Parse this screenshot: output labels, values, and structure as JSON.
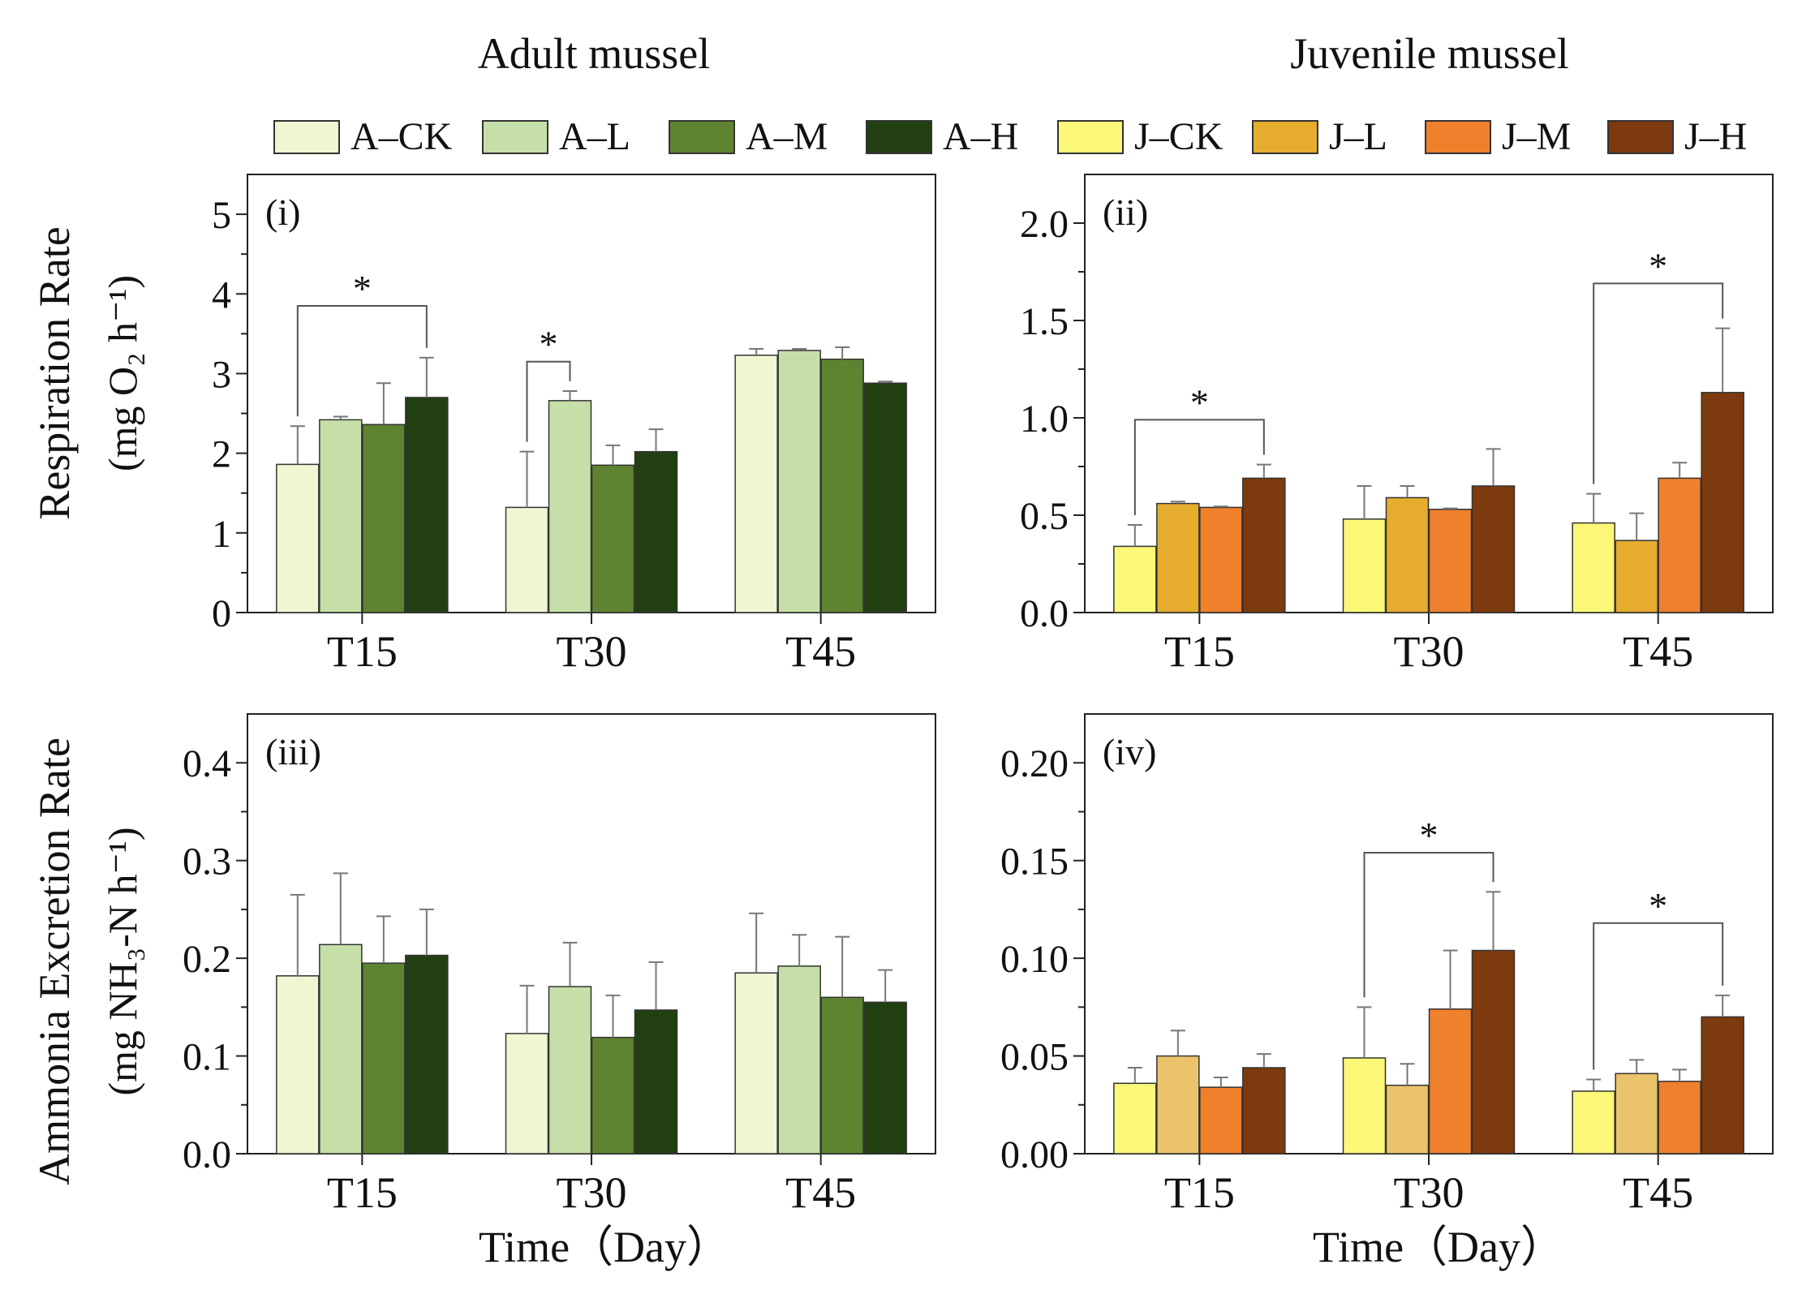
{
  "titles": {
    "adult": "Adult mussel",
    "juvenile": "Juvenile mussel"
  },
  "legend": [
    {
      "label": "A–CK",
      "color": "#f0f6d2"
    },
    {
      "label": "A–L",
      "color": "#c6dfa8"
    },
    {
      "label": "A–M",
      "color": "#5e8331"
    },
    {
      "label": "A–H",
      "color": "#223f12"
    },
    {
      "label": "J–CK",
      "color": "#fbf878"
    },
    {
      "label": "J–L",
      "color": "#e5ac2e"
    },
    {
      "label": "J–M",
      "color": "#ef802c"
    },
    {
      "label": "J–H",
      "color": "#7d3a0e"
    }
  ],
  "axis_labels": {
    "respiration": "Respiration Rate",
    "respiration_unit": "(mg O₂ h⁻¹)",
    "ammonia": "Ammonia Excretion Rate",
    "ammonia_unit": "(mg NH₃-N h⁻¹)",
    "time": "Time（Day）"
  },
  "chart_data": [
    {
      "type": "bar",
      "panel": "(i)",
      "title": "",
      "ylabel": "Respiration Rate (mg O2 h-1)",
      "xlabel": "",
      "categories": [
        "T15",
        "T30",
        "T45"
      ],
      "ylim": [
        0,
        5.5
      ],
      "yticks": [
        0,
        1,
        2,
        3,
        4,
        5
      ],
      "ytick_labels": [
        "0",
        "1",
        "2",
        "3",
        "4",
        "5"
      ],
      "series": [
        {
          "name": "A–CK",
          "color": "#f0f6d2",
          "values": [
            1.86,
            1.32,
            3.23
          ],
          "errors": [
            0.48,
            0.7,
            0.08
          ]
        },
        {
          "name": "A–L",
          "color": "#c6dfa8",
          "values": [
            2.42,
            2.66,
            3.29
          ],
          "errors": [
            0.04,
            0.12,
            0.02
          ]
        },
        {
          "name": "A–M",
          "color": "#5e8331",
          "values": [
            2.36,
            1.85,
            3.18
          ],
          "errors": [
            0.52,
            0.25,
            0.15
          ]
        },
        {
          "name": "A–H",
          "color": "#223f12",
          "values": [
            2.7,
            2.02,
            2.88
          ],
          "errors": [
            0.5,
            0.28,
            0.02
          ]
        }
      ],
      "significance": [
        {
          "group": 0,
          "from": 0,
          "to": 3,
          "y": 3.85,
          "label": "*"
        },
        {
          "group": 1,
          "from": 0,
          "to": 1,
          "y": 3.15,
          "label": "*"
        }
      ]
    },
    {
      "type": "bar",
      "panel": "(ii)",
      "title": "",
      "ylabel": "",
      "xlabel": "",
      "categories": [
        "T15",
        "T30",
        "T45"
      ],
      "ylim": [
        0,
        2.25
      ],
      "yticks": [
        0,
        0.5,
        1.0,
        1.5,
        2.0
      ],
      "ytick_labels": [
        "0.0",
        "0.5",
        "1.0",
        "1.5",
        "2.0"
      ],
      "series": [
        {
          "name": "J–CK",
          "color": "#fbf878",
          "values": [
            0.34,
            0.48,
            0.46
          ],
          "errors": [
            0.11,
            0.17,
            0.15
          ]
        },
        {
          "name": "J–L",
          "color": "#e5ac2e",
          "values": [
            0.56,
            0.59,
            0.37
          ],
          "errors": [
            0.01,
            0.06,
            0.14
          ]
        },
        {
          "name": "J–M",
          "color": "#ef802c",
          "values": [
            0.54,
            0.53,
            0.69
          ],
          "errors": [
            0.005,
            0.005,
            0.08
          ]
        },
        {
          "name": "J–H",
          "color": "#7d3a0e",
          "values": [
            0.69,
            0.65,
            1.13
          ],
          "errors": [
            0.07,
            0.19,
            0.33
          ]
        }
      ],
      "significance": [
        {
          "group": 0,
          "from": 0,
          "to": 3,
          "y": 0.99,
          "label": "*"
        },
        {
          "group": 2,
          "from": 0,
          "to": 3,
          "y": 1.69,
          "label": "*"
        }
      ]
    },
    {
      "type": "bar",
      "panel": "(iii)",
      "title": "",
      "ylabel": "Ammonia Excretion Rate (mg NH3-N h-1)",
      "xlabel": "Time (Day)",
      "categories": [
        "T15",
        "T30",
        "T45"
      ],
      "ylim": [
        0,
        0.45
      ],
      "yticks": [
        0,
        0.1,
        0.2,
        0.3,
        0.4
      ],
      "ytick_labels": [
        "0.0",
        "0.1",
        "0.2",
        "0.3",
        "0.4"
      ],
      "series": [
        {
          "name": "A–CK",
          "color": "#f0f6d2",
          "values": [
            0.182,
            0.123,
            0.185
          ],
          "errors": [
            0.083,
            0.049,
            0.061
          ]
        },
        {
          "name": "A–L",
          "color": "#c6dfa8",
          "values": [
            0.214,
            0.171,
            0.192
          ],
          "errors": [
            0.073,
            0.045,
            0.032
          ]
        },
        {
          "name": "A–M",
          "color": "#5e8331",
          "values": [
            0.195,
            0.119,
            0.16
          ],
          "errors": [
            0.048,
            0.043,
            0.062
          ]
        },
        {
          "name": "A–H",
          "color": "#223f12",
          "values": [
            0.203,
            0.147,
            0.155
          ],
          "errors": [
            0.047,
            0.049,
            0.033
          ]
        }
      ],
      "significance": []
    },
    {
      "type": "bar",
      "panel": "(iv)",
      "title": "",
      "ylabel": "",
      "xlabel": "Time (Day)",
      "categories": [
        "T15",
        "T30",
        "T45"
      ],
      "ylim": [
        0,
        0.225
      ],
      "yticks": [
        0,
        0.05,
        0.1,
        0.15,
        0.2
      ],
      "ytick_labels": [
        "0.00",
        "0.05",
        "0.10",
        "0.15",
        "0.20"
      ],
      "series": [
        {
          "name": "J–CK",
          "color": "#fbf878",
          "values": [
            0.036,
            0.049,
            0.032
          ],
          "errors": [
            0.008,
            0.026,
            0.006
          ]
        },
        {
          "name": "J–L",
          "color": "#ebc36a",
          "values": [
            0.05,
            0.035,
            0.041
          ],
          "errors": [
            0.013,
            0.011,
            0.007
          ]
        },
        {
          "name": "J–M",
          "color": "#ef802c",
          "values": [
            0.034,
            0.074,
            0.037
          ],
          "errors": [
            0.005,
            0.03,
            0.006
          ]
        },
        {
          "name": "J–H",
          "color": "#7d3a0e",
          "values": [
            0.044,
            0.104,
            0.07
          ],
          "errors": [
            0.007,
            0.03,
            0.011
          ]
        }
      ],
      "significance": [
        {
          "group": 1,
          "from": 0,
          "to": 3,
          "y": 0.154,
          "label": "*"
        },
        {
          "group": 2,
          "from": 0,
          "to": 3,
          "y": 0.118,
          "label": "*"
        }
      ]
    }
  ]
}
